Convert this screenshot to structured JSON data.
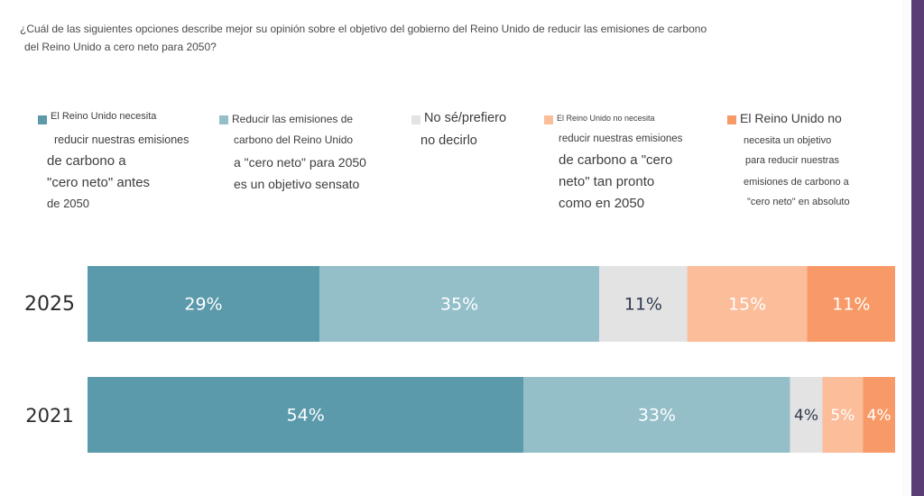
{
  "question": {
    "line1": "¿Cuál de las siguientes opciones describe mejor su opinión sobre el objetivo del gobierno del Reino Unido de reducir las emisiones de carbono",
    "line2": "del Reino Unido a cero neto para 2050?"
  },
  "legend": [
    {
      "color": "#5b9aab",
      "lines": [
        "El Reino Unido necesita",
        "reducir nuestras emisiones",
        "de carbono a",
        "\"cero neto\" antes",
        "de 2050"
      ]
    },
    {
      "color": "#94bfc9",
      "lines": [
        "Reducir las emisiones de",
        "carbono del Reino Unido",
        "a \"cero neto\" para 2050",
        "es un objetivo sensato"
      ]
    },
    {
      "color": "#e3e3e3",
      "lines": [
        "No sé/prefiero",
        "no decirlo"
      ]
    },
    {
      "color": "#fbbd9a",
      "lines": [
        "El Reino Unido no necesita",
        "reducir nuestras emisiones",
        "de carbono a \"cero",
        "neto\" tan pronto",
        "como en 2050"
      ]
    },
    {
      "color": "#f89a68",
      "lines": [
        "El Reino Unido no",
        "necesita un objetivo",
        "para reducir nuestras",
        "emisiones de carbono a",
        "\"cero neto\" en absoluto"
      ]
    }
  ],
  "chart_data": {
    "type": "bar",
    "orientation": "horizontal-stacked-100",
    "categories": [
      "2025",
      "2021"
    ],
    "series": [
      {
        "color": "#5b9aab",
        "label_color": "#ffffff",
        "values": [
          29,
          54
        ],
        "labels": [
          "29%",
          "54%"
        ]
      },
      {
        "color": "#94bfc9",
        "label_color": "#ffffff",
        "values": [
          35,
          33
        ],
        "labels": [
          "35%",
          "33%"
        ]
      },
      {
        "color": "#e3e3e3",
        "label_color": "#2f3a4d",
        "values": [
          11,
          4
        ],
        "labels": [
          "11%",
          "4%"
        ]
      },
      {
        "color": "#fbbd9a",
        "label_color": "#ffffff",
        "values": [
          15,
          5
        ],
        "labels": [
          "15%",
          "5%"
        ]
      },
      {
        "color": "#f89a68",
        "label_color": "#ffffff",
        "values": [
          11,
          4
        ],
        "labels": [
          "11%",
          "4%"
        ]
      }
    ]
  }
}
